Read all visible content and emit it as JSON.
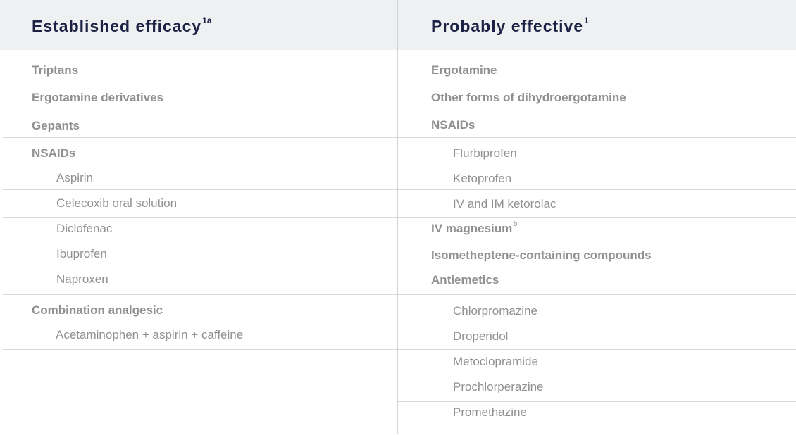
{
  "left": {
    "title": "Established efficacy",
    "title_sup": "1a",
    "rows": [
      {
        "text": "Triptans",
        "bold": true
      },
      {
        "text": "Ergotamine derivatives",
        "bold": true
      },
      {
        "text": "Gepants",
        "bold": true
      },
      {
        "text": "NSAIDs",
        "bold": true
      },
      {
        "text": "Aspirin",
        "bold": false
      },
      {
        "text": "Celecoxib oral solution",
        "bold": false
      },
      {
        "text": "Diclofenac",
        "bold": false
      },
      {
        "text": "Ibuprofen",
        "bold": false
      },
      {
        "text": "Naproxen",
        "bold": false
      },
      {
        "text": "Combination analgesic",
        "bold": true
      },
      {
        "text": "Acetaminophen + aspirin + caffeine",
        "bold": false
      }
    ]
  },
  "right": {
    "title": "Probably effective",
    "title_sup": "1",
    "rows": [
      {
        "text": "Ergotamine",
        "bold": true
      },
      {
        "text": "Other forms of dihydroergotamine",
        "bold": true
      },
      {
        "text": "NSAIDs",
        "bold": true
      },
      {
        "text": "Flurbiprofen",
        "bold": false
      },
      {
        "text": "Ketoprofen",
        "bold": false
      },
      {
        "text": "IV and IM ketorolac",
        "bold": false
      },
      {
        "text": "IV magnesium",
        "sup": "b",
        "bold": true
      },
      {
        "text": "Isometheptene-containing compounds",
        "bold": true
      },
      {
        "text": "Antiemetics",
        "bold": true
      },
      {
        "text": "Chlorpromazine",
        "bold": false
      },
      {
        "text": "Droperidol",
        "bold": false
      },
      {
        "text": "Metoclopramide",
        "bold": false
      },
      {
        "text": "Prochlorperazine",
        "bold": false
      },
      {
        "text": "Promethazine",
        "bold": false
      }
    ]
  }
}
